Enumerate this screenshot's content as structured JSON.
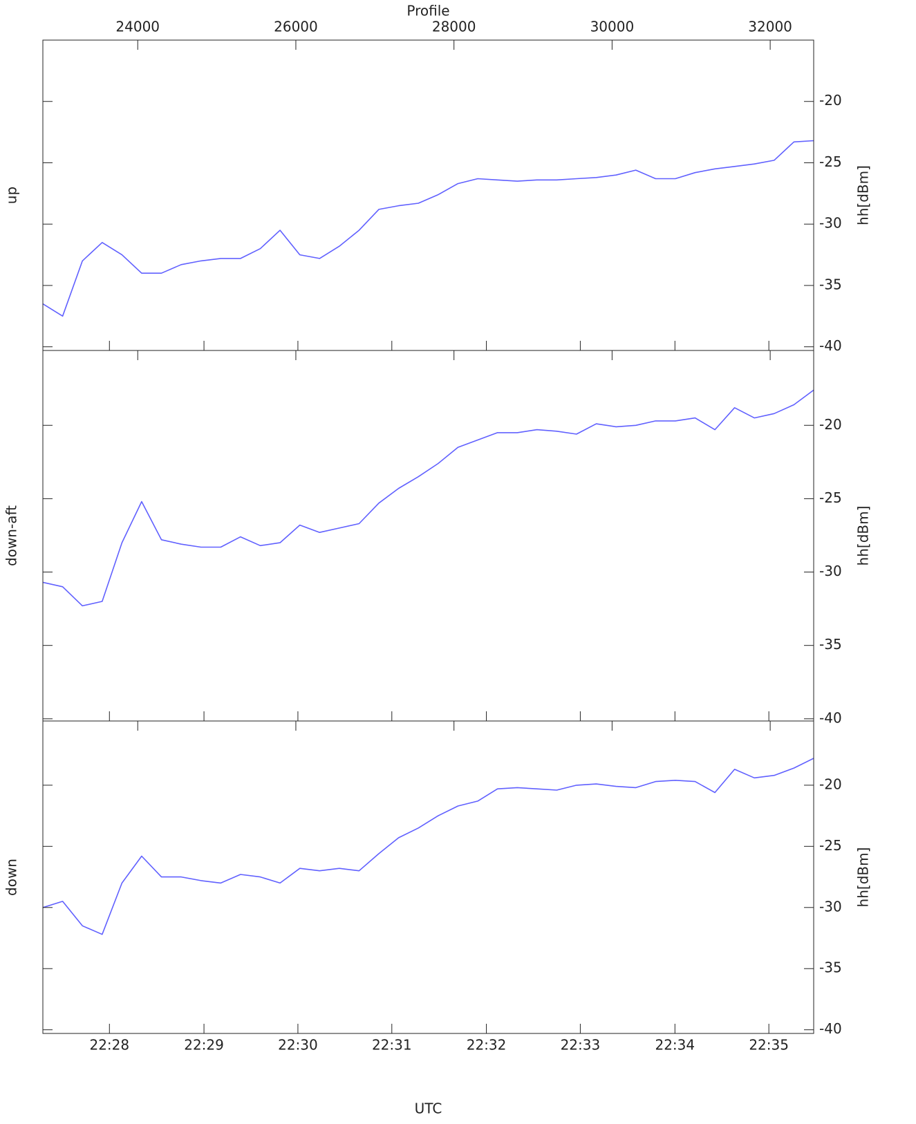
{
  "chart_data": [
    {
      "type": "line",
      "panel_label": "up",
      "xlabel": "Profile",
      "ylabel": "hh[dBm]",
      "xlim": [
        22800,
        32550
      ],
      "xticks": [
        24000,
        26000,
        28000,
        30000,
        32000
      ],
      "ylim": [
        -40.3,
        -15
      ],
      "yticks": [
        -40,
        -35,
        -30,
        -25,
        -20
      ],
      "color": "#6060ff",
      "x": [
        22800,
        23050,
        23300,
        23550,
        23800,
        24050,
        24300,
        24550,
        24800,
        25050,
        25300,
        25550,
        25800,
        26050,
        26300,
        26550,
        26800,
        27050,
        27300,
        27550,
        27800,
        28050,
        28300,
        28550,
        28800,
        29050,
        29300,
        29550,
        29800,
        30050,
        30300,
        30550,
        30800,
        31050,
        31300,
        31550,
        31800,
        32050,
        32300,
        32550
      ],
      "values": [
        -36.5,
        -37.5,
        -33,
        -31.5,
        -32.5,
        -34,
        -34,
        -33.3,
        -33,
        -32.8,
        -32.8,
        -32,
        -30.5,
        -32.5,
        -32.8,
        -31.8,
        -30.5,
        -28.8,
        -28.5,
        -28.3,
        -27.6,
        -26.7,
        -26.3,
        -26.4,
        -26.5,
        -26.4,
        -26.4,
        -26.3,
        -26.2,
        -26,
        -25.6,
        -26.3,
        -26.3,
        -25.8,
        -25.5,
        -25.3,
        -25.1,
        -24.8,
        -23.3,
        -23.2
      ]
    },
    {
      "type": "line",
      "panel_label": "down-aft",
      "ylabel": "hh[dBm]",
      "xlim": [
        22800,
        32550
      ],
      "ylim": [
        -40.15,
        -14.9
      ],
      "yticks": [
        -40,
        -35,
        -30,
        -25,
        -20
      ],
      "color": "#6060ff",
      "x": [
        22800,
        23050,
        23300,
        23550,
        23800,
        24050,
        24300,
        24550,
        24800,
        25050,
        25300,
        25550,
        25800,
        26050,
        26300,
        26550,
        26800,
        27050,
        27300,
        27550,
        27800,
        28050,
        28300,
        28550,
        28800,
        29050,
        29300,
        29550,
        29800,
        30050,
        30300,
        30550,
        30800,
        31050,
        31300,
        31550,
        31800,
        32050,
        32300,
        32550
      ],
      "values": [
        -30.7,
        -31,
        -32.3,
        -32,
        -28,
        -25.2,
        -27.8,
        -28.1,
        -28.3,
        -28.3,
        -27.6,
        -28.2,
        -28,
        -26.8,
        -27.3,
        -27,
        -26.7,
        -25.3,
        -24.3,
        -23.5,
        -22.6,
        -21.5,
        -21,
        -20.5,
        -20.5,
        -20.3,
        -20.4,
        -20.6,
        -19.9,
        -20.1,
        -20,
        -19.7,
        -19.7,
        -19.5,
        -20.3,
        -18.8,
        -19.5,
        -19.2,
        -18.6,
        -17.6
      ]
    },
    {
      "type": "line",
      "panel_label": "down",
      "ylabel": "hh[dBm]",
      "utc_label": "UTC",
      "xlim": [
        22800,
        32550
      ],
      "utc_ticks": [
        {
          "value": 23642,
          "label": "22:28"
        },
        {
          "value": 24838,
          "label": "22:29"
        },
        {
          "value": 26026,
          "label": "22:30"
        },
        {
          "value": 27214,
          "label": "22:31"
        },
        {
          "value": 28410,
          "label": "22:32"
        },
        {
          "value": 29598,
          "label": "22:33"
        },
        {
          "value": 30795,
          "label": "22:34"
        },
        {
          "value": 31983,
          "label": "22:35"
        }
      ],
      "ylim": [
        -40.3,
        -14.75
      ],
      "yticks": [
        -40,
        -35,
        -30,
        -25,
        -20
      ],
      "color": "#6060ff",
      "x": [
        22800,
        23050,
        23300,
        23550,
        23800,
        24050,
        24300,
        24550,
        24800,
        25050,
        25300,
        25550,
        25800,
        26050,
        26300,
        26550,
        26800,
        27050,
        27300,
        27550,
        27800,
        28050,
        28300,
        28550,
        28800,
        29050,
        29300,
        29550,
        29800,
        30050,
        30300,
        30550,
        30800,
        31050,
        31300,
        31550,
        31800,
        32050,
        32300,
        32550
      ],
      "values": [
        -30,
        -29.5,
        -31.5,
        -32.2,
        -28,
        -25.8,
        -27.5,
        -27.5,
        -27.8,
        -28,
        -27.3,
        -27.5,
        -28,
        -26.8,
        -27,
        -26.8,
        -27,
        -25.6,
        -24.3,
        -23.5,
        -22.5,
        -21.7,
        -21.3,
        -20.3,
        -20.2,
        -20.3,
        -20.4,
        -20,
        -19.9,
        -20.1,
        -20.2,
        -19.7,
        -19.6,
        -19.7,
        -20.6,
        -18.7,
        -19.4,
        -19.2,
        -18.6,
        -17.8
      ]
    }
  ]
}
